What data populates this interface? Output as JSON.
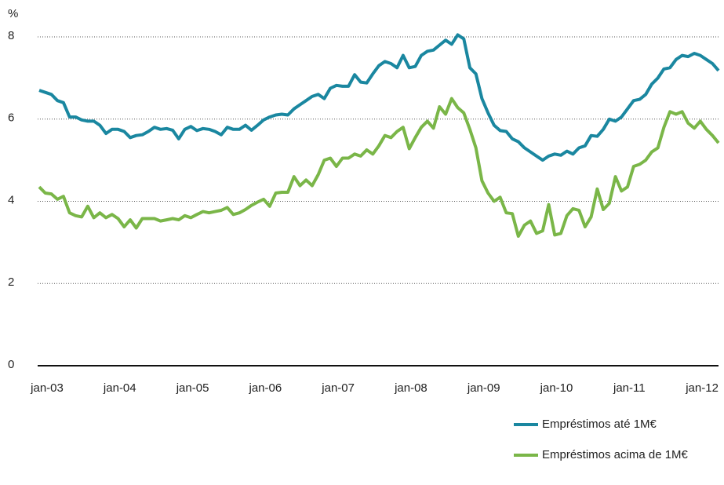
{
  "chart_data": {
    "type": "line",
    "y_label": "%",
    "categories": [
      "jan-03",
      null,
      null,
      null,
      null,
      null,
      null,
      null,
      null,
      null,
      null,
      null,
      "jan-04",
      null,
      null,
      null,
      null,
      null,
      null,
      null,
      null,
      null,
      null,
      null,
      "jan-05",
      null,
      null,
      null,
      null,
      null,
      null,
      null,
      null,
      null,
      null,
      null,
      "jan-06",
      null,
      null,
      null,
      null,
      null,
      null,
      null,
      null,
      null,
      null,
      null,
      "jan-07",
      null,
      null,
      null,
      null,
      null,
      null,
      null,
      null,
      null,
      null,
      null,
      "jan-08",
      null,
      null,
      null,
      null,
      null,
      null,
      null,
      null,
      null,
      null,
      null,
      "jan-09",
      null,
      null,
      null,
      null,
      null,
      null,
      null,
      null,
      null,
      null,
      null,
      "jan-10",
      null,
      null,
      null,
      null,
      null,
      null,
      null,
      null,
      null,
      null,
      null,
      "jan-11",
      null,
      null,
      null,
      null,
      null,
      null,
      null,
      null,
      null,
      null,
      null,
      "jan-12",
      null,
      null,
      null,
      null
    ],
    "series": [
      {
        "name": "Empréstimos até 1M€",
        "color": "#1a87a0",
        "values": [
          6.7,
          6.65,
          6.6,
          6.45,
          6.4,
          6.05,
          6.05,
          5.98,
          5.95,
          5.95,
          5.85,
          5.65,
          5.75,
          5.75,
          5.7,
          5.55,
          5.6,
          5.62,
          5.7,
          5.8,
          5.75,
          5.77,
          5.73,
          5.52,
          5.75,
          5.82,
          5.72,
          5.77,
          5.75,
          5.7,
          5.62,
          5.8,
          5.75,
          5.75,
          5.85,
          5.73,
          5.85,
          5.98,
          6.05,
          6.1,
          6.12,
          6.1,
          6.25,
          6.35,
          6.45,
          6.55,
          6.6,
          6.5,
          6.75,
          6.82,
          6.8,
          6.8,
          7.08,
          6.9,
          6.88,
          7.1,
          7.3,
          7.4,
          7.35,
          7.25,
          7.55,
          7.25,
          7.28,
          7.55,
          7.65,
          7.68,
          7.8,
          7.92,
          7.82,
          8.05,
          7.95,
          7.25,
          7.1,
          6.5,
          6.15,
          5.85,
          5.72,
          5.7,
          5.52,
          5.45,
          5.3,
          5.2,
          5.1,
          5.0,
          5.1,
          5.15,
          5.12,
          5.22,
          5.15,
          5.3,
          5.35,
          5.6,
          5.58,
          5.75,
          6.0,
          5.95,
          6.05,
          6.25,
          6.45,
          6.48,
          6.6,
          6.85,
          7.0,
          7.22,
          7.25,
          7.45,
          7.55,
          7.52,
          7.6,
          7.55,
          7.45,
          7.35,
          7.18
        ]
      },
      {
        "name": "Empréstimos acima de 1M€",
        "color": "#7ab648",
        "values": [
          4.35,
          4.2,
          4.18,
          4.05,
          4.12,
          3.72,
          3.65,
          3.62,
          3.88,
          3.6,
          3.72,
          3.6,
          3.68,
          3.58,
          3.38,
          3.55,
          3.35,
          3.58,
          3.58,
          3.58,
          3.52,
          3.55,
          3.58,
          3.55,
          3.65,
          3.6,
          3.68,
          3.75,
          3.72,
          3.75,
          3.78,
          3.85,
          3.68,
          3.72,
          3.8,
          3.9,
          3.98,
          4.05,
          3.88,
          4.2,
          4.22,
          4.22,
          4.6,
          4.38,
          4.52,
          4.38,
          4.65,
          5.0,
          5.05,
          4.85,
          5.05,
          5.05,
          5.15,
          5.1,
          5.25,
          5.15,
          5.35,
          5.6,
          5.55,
          5.7,
          5.8,
          5.28,
          5.55,
          5.8,
          5.95,
          5.78,
          6.3,
          6.12,
          6.5,
          6.28,
          6.15,
          5.75,
          5.3,
          4.5,
          4.2,
          4.0,
          4.1,
          3.72,
          3.7,
          3.15,
          3.42,
          3.52,
          3.22,
          3.28,
          3.92,
          3.18,
          3.22,
          3.65,
          3.82,
          3.78,
          3.38,
          3.62,
          4.3,
          3.8,
          3.95,
          4.6,
          4.25,
          4.35,
          4.85,
          4.9,
          5.0,
          5.2,
          5.3,
          5.8,
          6.18,
          6.12,
          6.18,
          5.9,
          5.78,
          5.95,
          5.75,
          5.6,
          5.42
        ]
      }
    ],
    "ylim": [
      0,
      8
    ],
    "yticks": [
      0,
      2,
      4,
      6,
      8
    ],
    "grid": true,
    "legend": "lower right"
  }
}
